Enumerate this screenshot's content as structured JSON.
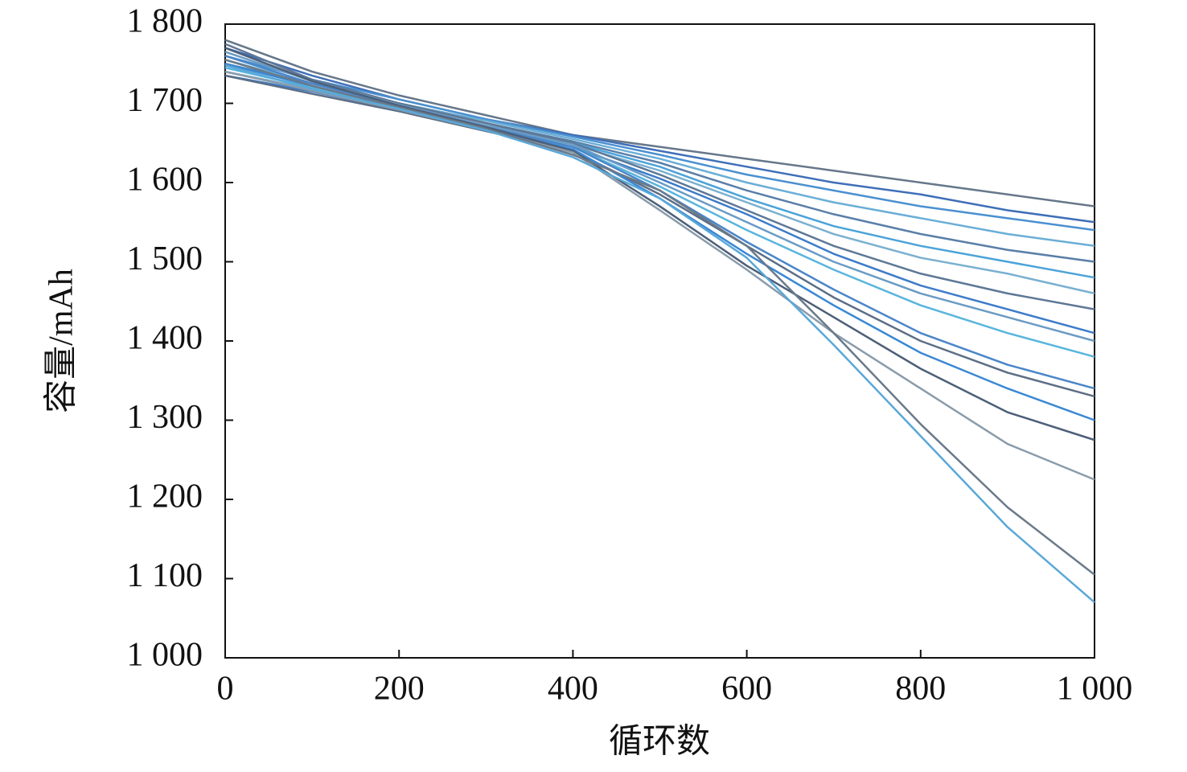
{
  "chart_data": {
    "type": "line",
    "x_label": "循环数",
    "y_label": "容量/mAh",
    "x": [
      0,
      100,
      200,
      300,
      400,
      500,
      600,
      700,
      800,
      900,
      1000
    ],
    "xlim": [
      0,
      1000
    ],
    "xticks": [
      0,
      200,
      400,
      600,
      800,
      {
        "value": 1000,
        "label": "1 000"
      }
    ],
    "ylim": [
      1000,
      1800
    ],
    "yticks": [
      {
        "value": 1000,
        "label": "1 000"
      },
      {
        "value": 1100,
        "label": "1 100"
      },
      {
        "value": 1200,
        "label": "1 200"
      },
      {
        "value": 1300,
        "label": "1 300"
      },
      {
        "value": 1400,
        "label": "1 400"
      },
      {
        "value": 1500,
        "label": "1 500"
      },
      {
        "value": 1600,
        "label": "1 600"
      },
      {
        "value": 1700,
        "label": "1 700"
      },
      {
        "value": 1800,
        "label": "1 800"
      }
    ],
    "grid": false,
    "series": [
      {
        "color": "#66778a",
        "values": [
          1780,
          1740,
          1710,
          1685,
          1660,
          1645,
          1630,
          1615,
          1600,
          1585,
          1570
        ]
      },
      {
        "color": "#3f6fb8",
        "values": [
          1770,
          1735,
          1705,
          1680,
          1660,
          1640,
          1620,
          1600,
          1585,
          1565,
          1550
        ]
      },
      {
        "color": "#4a90d0",
        "values": [
          1760,
          1730,
          1705,
          1680,
          1658,
          1635,
          1610,
          1590,
          1570,
          1555,
          1540
        ]
      },
      {
        "color": "#6aaed6",
        "values": [
          1755,
          1725,
          1700,
          1678,
          1655,
          1630,
          1600,
          1575,
          1555,
          1535,
          1520
        ]
      },
      {
        "color": "#5a7fa8",
        "values": [
          1750,
          1725,
          1700,
          1675,
          1652,
          1625,
          1590,
          1560,
          1535,
          1515,
          1500
        ]
      },
      {
        "color": "#4ba3d9",
        "values": [
          1745,
          1720,
          1697,
          1672,
          1650,
          1620,
          1580,
          1545,
          1520,
          1500,
          1480
        ]
      },
      {
        "color": "#7ab0d0",
        "values": [
          1740,
          1718,
          1695,
          1670,
          1648,
          1615,
          1575,
          1535,
          1505,
          1485,
          1460
        ]
      },
      {
        "color": "#5e7896",
        "values": [
          1775,
          1730,
          1700,
          1675,
          1650,
          1610,
          1565,
          1520,
          1485,
          1460,
          1440
        ]
      },
      {
        "color": "#3d7cc9",
        "values": [
          1735,
          1715,
          1692,
          1668,
          1645,
          1605,
          1560,
          1510,
          1470,
          1440,
          1410
        ]
      },
      {
        "color": "#6a9bc4",
        "values": [
          1765,
          1728,
          1698,
          1672,
          1648,
          1600,
          1550,
          1500,
          1460,
          1430,
          1400
        ]
      },
      {
        "color": "#59b5dd",
        "values": [
          1745,
          1720,
          1695,
          1668,
          1645,
          1595,
          1540,
          1490,
          1445,
          1410,
          1380
        ]
      },
      {
        "color": "#4a86c8",
        "values": [
          1760,
          1725,
          1697,
          1670,
          1645,
          1590,
          1525,
          1465,
          1410,
          1370,
          1340
        ]
      },
      {
        "color": "#5c6e85",
        "values": [
          1735,
          1712,
          1690,
          1665,
          1640,
          1585,
          1520,
          1455,
          1400,
          1360,
          1330
        ]
      },
      {
        "color": "#3a88d4",
        "values": [
          1750,
          1722,
          1695,
          1668,
          1642,
          1580,
          1510,
          1445,
          1385,
          1340,
          1300
        ]
      },
      {
        "color": "#4d5f78",
        "values": [
          1770,
          1728,
          1697,
          1670,
          1640,
          1570,
          1495,
          1430,
          1365,
          1310,
          1275
        ]
      },
      {
        "color": "#8a9cab",
        "values": [
          1740,
          1716,
          1692,
          1666,
          1638,
          1565,
          1490,
          1410,
          1340,
          1270,
          1225
        ]
      },
      {
        "color": "#6a7a8a",
        "values": [
          1755,
          1722,
          1695,
          1668,
          1635,
          1590,
          1520,
          1410,
          1295,
          1190,
          1105
        ]
      },
      {
        "color": "#5aa8d8",
        "values": [
          1748,
          1718,
          1693,
          1666,
          1632,
          1580,
          1505,
          1395,
          1280,
          1165,
          1070
        ]
      }
    ]
  }
}
